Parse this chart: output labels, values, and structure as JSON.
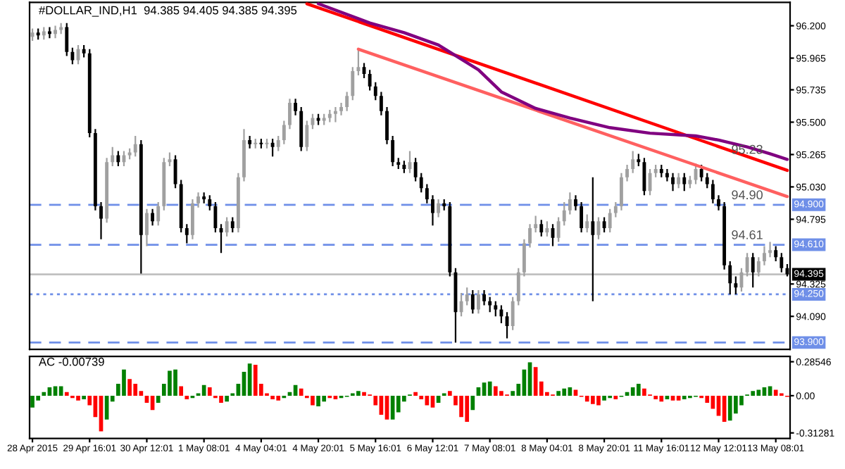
{
  "chart_data": [
    {
      "type": "candlestick",
      "title": "#DOLLAR_IND,H1  94.385 94.405 94.385 94.395",
      "categories": [
        null,
        null,
        null,
        null,
        null,
        null,
        null,
        null,
        null,
        null,
        null,
        null,
        null,
        null,
        null,
        null,
        null,
        null,
        null,
        null,
        null,
        null,
        null,
        null,
        null,
        null,
        null,
        null,
        null,
        null,
        null,
        null,
        null,
        null,
        null,
        null,
        null,
        null,
        null,
        null,
        null,
        null,
        null,
        null,
        null,
        null,
        null,
        null,
        null,
        null,
        null,
        null,
        null,
        null,
        null,
        null,
        null,
        null,
        null,
        null,
        null,
        null,
        null,
        null,
        null,
        null,
        null,
        null,
        null,
        null,
        null,
        null,
        null,
        null,
        null,
        null,
        null,
        null,
        null,
        null,
        null,
        null,
        null,
        null,
        null,
        null,
        null,
        null,
        null,
        null,
        null,
        null,
        null,
        null,
        null,
        null,
        null,
        null,
        null,
        null,
        null,
        null,
        null,
        null,
        null,
        null,
        null,
        null,
        null,
        null,
        null,
        null,
        null,
        null,
        null,
        null,
        null,
        null,
        null,
        null,
        null,
        null,
        null,
        null,
        null,
        null,
        null,
        null,
        null,
        null,
        null,
        null,
        null
      ],
      "ohlc": [
        [
          96.12,
          96.18,
          96.09,
          96.15
        ],
        [
          96.15,
          96.18,
          96.1,
          96.13
        ],
        [
          96.13,
          96.19,
          96.1,
          96.16
        ],
        [
          96.16,
          96.19,
          96.11,
          96.14
        ],
        [
          96.14,
          96.2,
          96.11,
          96.17
        ],
        [
          96.17,
          96.22,
          96.14,
          96.19
        ],
        [
          96.19,
          96.22,
          95.98,
          96.01
        ],
        [
          96.01,
          96.04,
          95.92,
          95.95
        ],
        [
          95.95,
          96.06,
          95.92,
          96.03
        ],
        [
          96.03,
          96.06,
          95.97,
          96.0
        ],
        [
          96.0,
          96.03,
          95.39,
          95.42
        ],
        [
          95.42,
          95.45,
          94.86,
          94.89
        ],
        [
          94.89,
          94.92,
          94.65,
          94.8
        ],
        [
          94.8,
          95.24,
          94.77,
          95.21
        ],
        [
          95.21,
          95.32,
          95.18,
          95.26
        ],
        [
          95.26,
          95.29,
          95.18,
          95.21
        ],
        [
          95.21,
          95.29,
          95.18,
          95.26
        ],
        [
          95.26,
          95.31,
          95.23,
          95.28
        ],
        [
          95.28,
          95.4,
          95.25,
          95.34
        ],
        [
          95.34,
          95.37,
          94.4,
          94.68
        ],
        [
          94.68,
          94.87,
          94.6,
          94.84
        ],
        [
          94.84,
          94.87,
          94.75,
          94.78
        ],
        [
          94.78,
          94.92,
          94.75,
          94.89
        ],
        [
          94.89,
          95.24,
          94.86,
          95.21
        ],
        [
          95.21,
          95.28,
          95.18,
          95.23
        ],
        [
          95.23,
          95.26,
          95.02,
          95.05
        ],
        [
          95.05,
          95.08,
          94.7,
          94.73
        ],
        [
          94.73,
          94.76,
          94.62,
          94.68
        ],
        [
          94.68,
          94.94,
          94.65,
          94.91
        ],
        [
          94.91,
          94.99,
          94.88,
          94.96
        ],
        [
          94.96,
          94.99,
          94.91,
          94.94
        ],
        [
          94.94,
          94.97,
          94.86,
          94.89
        ],
        [
          94.89,
          94.92,
          94.7,
          94.73
        ],
        [
          94.73,
          94.76,
          94.55,
          94.7
        ],
        [
          94.7,
          94.81,
          94.67,
          94.78
        ],
        [
          94.78,
          94.81,
          94.7,
          94.73
        ],
        [
          94.73,
          95.13,
          94.7,
          95.1
        ],
        [
          95.1,
          95.45,
          95.07,
          95.37
        ],
        [
          95.37,
          95.4,
          95.31,
          95.34
        ],
        [
          95.34,
          95.38,
          95.31,
          95.35
        ],
        [
          95.35,
          95.38,
          95.31,
          95.34
        ],
        [
          95.34,
          95.38,
          95.31,
          95.35
        ],
        [
          95.35,
          95.38,
          95.25,
          95.32
        ],
        [
          95.32,
          95.4,
          95.29,
          95.37
        ],
        [
          95.37,
          95.51,
          95.34,
          95.48
        ],
        [
          95.48,
          95.67,
          95.45,
          95.64
        ],
        [
          95.64,
          95.67,
          95.55,
          95.58
        ],
        [
          95.58,
          95.61,
          95.29,
          95.32
        ],
        [
          95.32,
          95.51,
          95.29,
          95.48
        ],
        [
          95.48,
          95.56,
          95.45,
          95.53
        ],
        [
          95.53,
          95.56,
          95.48,
          95.51
        ],
        [
          95.51,
          95.56,
          95.48,
          95.53
        ],
        [
          95.53,
          95.59,
          95.5,
          95.56
        ],
        [
          95.56,
          95.61,
          95.5,
          95.58
        ],
        [
          95.58,
          95.64,
          95.55,
          95.61
        ],
        [
          95.61,
          95.72,
          95.58,
          95.69
        ],
        [
          95.69,
          95.9,
          95.66,
          95.87
        ],
        [
          95.87,
          96.03,
          95.84,
          95.9
        ],
        [
          95.9,
          95.93,
          95.82,
          95.85
        ],
        [
          95.85,
          95.88,
          95.73,
          95.76
        ],
        [
          95.76,
          95.79,
          95.66,
          95.69
        ],
        [
          95.69,
          95.72,
          95.55,
          95.58
        ],
        [
          95.58,
          95.61,
          95.34,
          95.37
        ],
        [
          95.37,
          95.4,
          95.18,
          95.21
        ],
        [
          95.21,
          95.24,
          95.16,
          95.19
        ],
        [
          95.19,
          95.22,
          95.13,
          95.16
        ],
        [
          95.16,
          95.29,
          95.13,
          95.21
        ],
        [
          95.21,
          95.24,
          95.07,
          95.1
        ],
        [
          95.1,
          95.13,
          94.99,
          95.02
        ],
        [
          95.02,
          95.05,
          94.91,
          94.94
        ],
        [
          94.94,
          94.97,
          94.75,
          94.84
        ],
        [
          94.84,
          94.94,
          94.81,
          94.91
        ],
        [
          94.91,
          94.94,
          94.86,
          94.89
        ],
        [
          94.89,
          94.92,
          94.38,
          94.41
        ],
        [
          94.41,
          94.44,
          93.9,
          94.12
        ],
        [
          94.12,
          94.26,
          94.09,
          94.2
        ],
        [
          94.2,
          94.3,
          94.17,
          94.25
        ],
        [
          94.25,
          94.28,
          94.11,
          94.14
        ],
        [
          94.14,
          94.28,
          94.11,
          94.25
        ],
        [
          94.25,
          94.28,
          94.17,
          94.2
        ],
        [
          94.2,
          94.23,
          94.12,
          94.17
        ],
        [
          94.17,
          94.2,
          94.09,
          94.14
        ],
        [
          94.14,
          94.17,
          94.04,
          94.09
        ],
        [
          94.09,
          94.12,
          93.93,
          94.02
        ],
        [
          94.02,
          94.23,
          93.99,
          94.2
        ],
        [
          94.2,
          94.44,
          94.17,
          94.41
        ],
        [
          94.41,
          94.65,
          94.38,
          94.62
        ],
        [
          94.62,
          94.76,
          94.59,
          94.73
        ],
        [
          94.73,
          94.82,
          94.7,
          94.76
        ],
        [
          94.76,
          94.79,
          94.67,
          94.7
        ],
        [
          94.7,
          94.78,
          94.67,
          94.73
        ],
        [
          94.73,
          94.76,
          94.6,
          94.66
        ],
        [
          94.66,
          94.81,
          94.63,
          94.78
        ],
        [
          94.78,
          94.92,
          94.75,
          94.86
        ],
        [
          94.86,
          94.99,
          94.83,
          94.94
        ],
        [
          94.94,
          94.97,
          94.86,
          94.89
        ],
        [
          94.89,
          94.92,
          94.7,
          94.73
        ],
        [
          94.73,
          94.83,
          94.7,
          94.78
        ],
        [
          94.78,
          95.1,
          94.2,
          94.68
        ],
        [
          94.68,
          94.81,
          94.65,
          94.78
        ],
        [
          94.78,
          94.81,
          94.7,
          94.73
        ],
        [
          94.73,
          94.87,
          94.7,
          94.84
        ],
        [
          94.84,
          94.92,
          94.81,
          94.89
        ],
        [
          94.89,
          95.13,
          94.86,
          95.1
        ],
        [
          95.1,
          95.19,
          95.07,
          95.16
        ],
        [
          95.16,
          95.29,
          95.13,
          95.23
        ],
        [
          95.23,
          95.27,
          95.18,
          95.21
        ],
        [
          95.21,
          95.24,
          94.97,
          95.0
        ],
        [
          95.0,
          95.16,
          94.97,
          95.13
        ],
        [
          95.13,
          95.19,
          95.1,
          95.16
        ],
        [
          95.16,
          95.19,
          95.1,
          95.13
        ],
        [
          95.13,
          95.16,
          95.07,
          95.1
        ],
        [
          95.1,
          95.13,
          95.0,
          95.05
        ],
        [
          95.05,
          95.13,
          95.02,
          95.1
        ],
        [
          95.1,
          95.13,
          95.0,
          95.05
        ],
        [
          95.05,
          95.11,
          95.02,
          95.08
        ],
        [
          95.08,
          95.2,
          95.05,
          95.16
        ],
        [
          95.16,
          95.19,
          95.07,
          95.1
        ],
        [
          95.1,
          95.13,
          95.02,
          95.05
        ],
        [
          95.05,
          95.08,
          94.91,
          94.94
        ],
        [
          94.94,
          94.97,
          94.86,
          94.89
        ],
        [
          94.89,
          94.92,
          94.43,
          94.46
        ],
        [
          94.46,
          94.49,
          94.25,
          94.33
        ],
        [
          94.33,
          94.38,
          94.25,
          94.3
        ],
        [
          94.3,
          94.44,
          94.27,
          94.41
        ],
        [
          94.41,
          94.55,
          94.38,
          94.52
        ],
        [
          94.52,
          94.55,
          94.3,
          94.41
        ],
        [
          94.41,
          94.52,
          94.38,
          94.49
        ],
        [
          94.49,
          94.6,
          94.46,
          94.55
        ],
        [
          94.55,
          94.63,
          94.52,
          94.57
        ],
        [
          94.57,
          94.6,
          94.49,
          94.52
        ],
        [
          94.52,
          94.55,
          94.41,
          94.44
        ],
        [
          94.44,
          94.47,
          94.38,
          94.395
        ]
      ],
      "series": [
        {
          "type": "line",
          "color": "#ff0000",
          "values": [
            null,
            null,
            null,
            null,
            null,
            null,
            null,
            null,
            null,
            null,
            null,
            null,
            null,
            null,
            null,
            null,
            null,
            null,
            null,
            null,
            null,
            null,
            null,
            null,
            null,
            null,
            null,
            null,
            null,
            null,
            null,
            null,
            null,
            null,
            null,
            null,
            null,
            null,
            null,
            null,
            null,
            null,
            null,
            null,
            null,
            null,
            null,
            null,
            96.36,
            null,
            null,
            null,
            null,
            null,
            null,
            null,
            null,
            null,
            null,
            null,
            null,
            null,
            null,
            null,
            null,
            null,
            null,
            null,
            null,
            null,
            null,
            null,
            null,
            null,
            null,
            null,
            null,
            null,
            null,
            null,
            null,
            null,
            null,
            null,
            null,
            null,
            null,
            null,
            null,
            null,
            null,
            null,
            null,
            null,
            null,
            null,
            null,
            null,
            null,
            null,
            null,
            null,
            null,
            null,
            null,
            null,
            null,
            null,
            null,
            null,
            null,
            null,
            null,
            null,
            null,
            null,
            null,
            null,
            null,
            null,
            null,
            null,
            null,
            null,
            null,
            null,
            null,
            null,
            null,
            null,
            null,
            null,
            95.15
          ]
        },
        {
          "type": "line",
          "color": "#ff6060",
          "values": [
            null,
            null,
            null,
            null,
            null,
            null,
            null,
            null,
            null,
            null,
            null,
            null,
            null,
            null,
            null,
            null,
            null,
            null,
            null,
            null,
            null,
            null,
            null,
            null,
            null,
            null,
            null,
            null,
            null,
            null,
            null,
            null,
            null,
            null,
            null,
            null,
            null,
            null,
            null,
            null,
            null,
            null,
            null,
            null,
            null,
            null,
            null,
            null,
            null,
            null,
            null,
            null,
            null,
            null,
            null,
            null,
            null,
            96.03,
            null,
            null,
            null,
            null,
            null,
            null,
            null,
            null,
            null,
            null,
            null,
            null,
            null,
            null,
            null,
            null,
            null,
            null,
            null,
            null,
            null,
            null,
            null,
            null,
            null,
            null,
            null,
            null,
            null,
            null,
            null,
            null,
            null,
            null,
            null,
            null,
            null,
            null,
            null,
            null,
            null,
            null,
            null,
            null,
            null,
            null,
            null,
            null,
            null,
            null,
            null,
            null,
            null,
            null,
            null,
            null,
            null,
            null,
            null,
            null,
            null,
            null,
            null,
            null,
            null,
            null,
            null,
            null,
            null,
            null,
            null,
            null,
            null,
            null,
            94.96
          ]
        },
        {
          "type": "line",
          "color": "#800080",
          "values": [
            null,
            null,
            null,
            null,
            null,
            null,
            null,
            null,
            null,
            null,
            null,
            null,
            null,
            null,
            null,
            null,
            null,
            null,
            null,
            null,
            null,
            null,
            null,
            null,
            null,
            null,
            null,
            null,
            null,
            null,
            null,
            null,
            null,
            null,
            null,
            null,
            null,
            null,
            null,
            null,
            null,
            null,
            null,
            null,
            null,
            null,
            null,
            null,
            null,
            null,
            96.36,
            null,
            null,
            null,
            null,
            null,
            null,
            null,
            null,
            96.22,
            null,
            null,
            null,
            null,
            null,
            96.15,
            null,
            null,
            null,
            null,
            null,
            96.06,
            null,
            null,
            null,
            null,
            null,
            null,
            95.88,
            null,
            null,
            null,
            95.72,
            null,
            null,
            null,
            null,
            null,
            95.6,
            null,
            null,
            null,
            null,
            null,
            95.53,
            null,
            null,
            null,
            null,
            null,
            null,
            95.46,
            null,
            null,
            null,
            null,
            null,
            null,
            95.42,
            null,
            null,
            null,
            null,
            null,
            null,
            null,
            95.4,
            null,
            null,
            null,
            95.37,
            null,
            null,
            null,
            null,
            95.32,
            null,
            null,
            null,
            95.27,
            null,
            null,
            95.23
          ]
        }
      ],
      "ref_lines": [
        {
          "axis": "y",
          "value": 94.9,
          "label": "94.900",
          "color": "#6f8fe8",
          "line_style": "dashed"
        },
        {
          "axis": "y",
          "value": 94.61,
          "label": "94.610",
          "color": "#6f8fe8",
          "line_style": "dashed"
        },
        {
          "axis": "y",
          "value": 94.395,
          "label": "94.395",
          "color": "#c0c0c0",
          "line_style": "solid"
        },
        {
          "axis": "y",
          "value": 94.25,
          "label": "94.250",
          "color": "#6f8fe8",
          "line_style": "dotted"
        },
        {
          "axis": "y",
          "value": 93.9,
          "label": "93.900",
          "color": "#6f8fe8",
          "line_style": "dashed"
        }
      ],
      "annotations": [
        {
          "text": "95.23",
          "y": 95.23
        },
        {
          "text": "94.90",
          "y": 94.9
        },
        {
          "text": "94.61",
          "y": 94.61
        }
      ],
      "ylim": [
        93.85,
        96.37
      ],
      "yticks": [
        {
          "value": 96.2,
          "label": "96.200"
        },
        95.965,
        95.735,
        {
          "value": 95.5,
          "label": "95.500"
        },
        95.265,
        {
          "value": 95.03,
          "label": "95.030"
        },
        94.795,
        94.325,
        {
          "value": 94.09,
          "label": "94.090"
        }
      ],
      "tick_labels": "y"
    },
    {
      "type": "bar",
      "categories": [
        "28 Apr 2015",
        null,
        null,
        null,
        null,
        null,
        null,
        null,
        null,
        null,
        "29 Apr 16:01",
        null,
        null,
        null,
        null,
        null,
        null,
        null,
        null,
        null,
        "30 Apr 12:01",
        null,
        null,
        null,
        null,
        null,
        null,
        null,
        null,
        null,
        "1 May 08:01",
        null,
        null,
        null,
        null,
        null,
        null,
        null,
        null,
        null,
        "4 May 04:01",
        null,
        null,
        null,
        null,
        null,
        null,
        null,
        null,
        null,
        "4 May 20:01",
        null,
        null,
        null,
        null,
        null,
        null,
        null,
        null,
        null,
        "5 May 16:01",
        null,
        null,
        null,
        null,
        null,
        null,
        null,
        null,
        null,
        "6 May 12:01",
        null,
        null,
        null,
        null,
        null,
        null,
        null,
        null,
        null,
        "7 May 08:01",
        null,
        null,
        null,
        null,
        null,
        null,
        null,
        null,
        null,
        "8 May 04:01",
        null,
        null,
        null,
        null,
        null,
        null,
        null,
        null,
        null,
        "8 May 20:01",
        null,
        null,
        null,
        null,
        null,
        null,
        null,
        null,
        null,
        "11 May 16:01",
        null,
        null,
        null,
        null,
        null,
        null,
        null,
        null,
        null,
        "12 May 12:01",
        null,
        null,
        null,
        null,
        null,
        null,
        null,
        null,
        null,
        "13 May 08:01",
        null,
        null
      ],
      "values": [
        -0.1,
        -0.04,
        0.03,
        0.07,
        0.08,
        0.08,
        0.03,
        -0.02,
        -0.04,
        -0.03,
        -0.08,
        -0.18,
        -0.3,
        -0.2,
        -0.05,
        0.1,
        0.22,
        0.14,
        0.1,
        0.04,
        -0.06,
        -0.12,
        -0.06,
        0.1,
        0.21,
        0.22,
        0.08,
        -0.03,
        -0.02,
        0.02,
        0.09,
        0.07,
        -0.02,
        -0.06,
        -0.05,
        0.02,
        0.1,
        0.2,
        0.27,
        0.26,
        0.1,
        0.02,
        -0.03,
        -0.04,
        -0.02,
        0.03,
        0.09,
        0.06,
        -0.02,
        -0.08,
        -0.09,
        -0.05,
        -0.02,
        -0.03,
        -0.02,
        -0.01,
        0.02,
        0.04,
        0.03,
        0.01,
        -0.08,
        -0.16,
        -0.2,
        -0.2,
        -0.14,
        -0.05,
        0.01,
        0.03,
        -0.03,
        -0.08,
        -0.1,
        -0.06,
        0.02,
        0.04,
        -0.08,
        -0.18,
        -0.22,
        -0.12,
        0.07,
        0.11,
        0.12,
        0.08,
        0.04,
        0.01,
        0.04,
        0.1,
        0.22,
        0.28,
        0.24,
        0.12,
        0.03,
        0.01,
        0.04,
        0.06,
        0.07,
        0.05,
        -0.01,
        -0.05,
        -0.07,
        -0.08,
        -0.04,
        -0.02,
        -0.03,
        -0.01,
        0.03,
        0.07,
        0.1,
        0.06,
        0.01,
        -0.03,
        -0.05,
        -0.03,
        -0.04,
        -0.04,
        -0.03,
        -0.02,
        -0.01,
        -0.02,
        -0.06,
        -0.11,
        -0.17,
        -0.22,
        -0.21,
        -0.15,
        -0.08,
        0.01,
        0.04,
        0.05,
        0.07,
        0.08,
        0.05,
        0.02,
        -0.01
      ],
      "colors": [
        "#008000",
        "#008000",
        "#008000",
        "#008000",
        "#008000",
        "#008000",
        "#ff0000",
        "#ff0000",
        "#ff0000",
        "#008000",
        "#ff0000",
        "#ff0000",
        "#ff0000",
        "#008000",
        "#008000",
        "#008000",
        "#008000",
        "#ff0000",
        "#ff0000",
        "#ff0000",
        "#ff0000",
        "#ff0000",
        "#008000",
        "#008000",
        "#008000",
        "#008000",
        "#ff0000",
        "#ff0000",
        "#008000",
        "#008000",
        "#008000",
        "#ff0000",
        "#ff0000",
        "#ff0000",
        "#008000",
        "#008000",
        "#008000",
        "#008000",
        "#008000",
        "#ff0000",
        "#ff0000",
        "#ff0000",
        "#ff0000",
        "#ff0000",
        "#008000",
        "#008000",
        "#008000",
        "#ff0000",
        "#ff0000",
        "#ff0000",
        "#008000",
        "#008000",
        "#ff0000",
        "#ff0000",
        "#008000",
        "#008000",
        "#008000",
        "#008000",
        "#ff0000",
        "#ff0000",
        "#ff0000",
        "#ff0000",
        "#ff0000",
        "#008000",
        "#008000",
        "#008000",
        "#008000",
        "#ff0000",
        "#ff0000",
        "#ff0000",
        "#ff0000",
        "#008000",
        "#008000",
        "#ff0000",
        "#ff0000",
        "#ff0000",
        "#ff0000",
        "#008000",
        "#008000",
        "#008000",
        "#008000",
        "#ff0000",
        "#ff0000",
        "#ff0000",
        "#008000",
        "#008000",
        "#008000",
        "#008000",
        "#ff0000",
        "#ff0000",
        "#ff0000",
        "#ff0000",
        "#008000",
        "#008000",
        "#008000",
        "#ff0000",
        "#ff0000",
        "#ff0000",
        "#ff0000",
        "#ff0000",
        "#008000",
        "#008000",
        "#ff0000",
        "#008000",
        "#008000",
        "#008000",
        "#008000",
        "#ff0000",
        "#ff0000",
        "#ff0000",
        "#ff0000",
        "#008000",
        "#ff0000",
        "#ff0000",
        "#008000",
        "#008000",
        "#008000",
        "#ff0000",
        "#ff0000",
        "#ff0000",
        "#ff0000",
        "#ff0000",
        "#008000",
        "#008000",
        "#008000",
        "#008000",
        "#008000",
        "#008000",
        "#008000",
        "#008000",
        "#ff0000",
        "#ff0000",
        "#ff0000"
      ],
      "annotations": [
        "AC -0.00739"
      ],
      "ylim": [
        -0.36,
        0.33
      ],
      "yticks": [
        0.28546,
        {
          "value": 0,
          "label": "0.00"
        },
        -0.31281
      ]
    }
  ]
}
